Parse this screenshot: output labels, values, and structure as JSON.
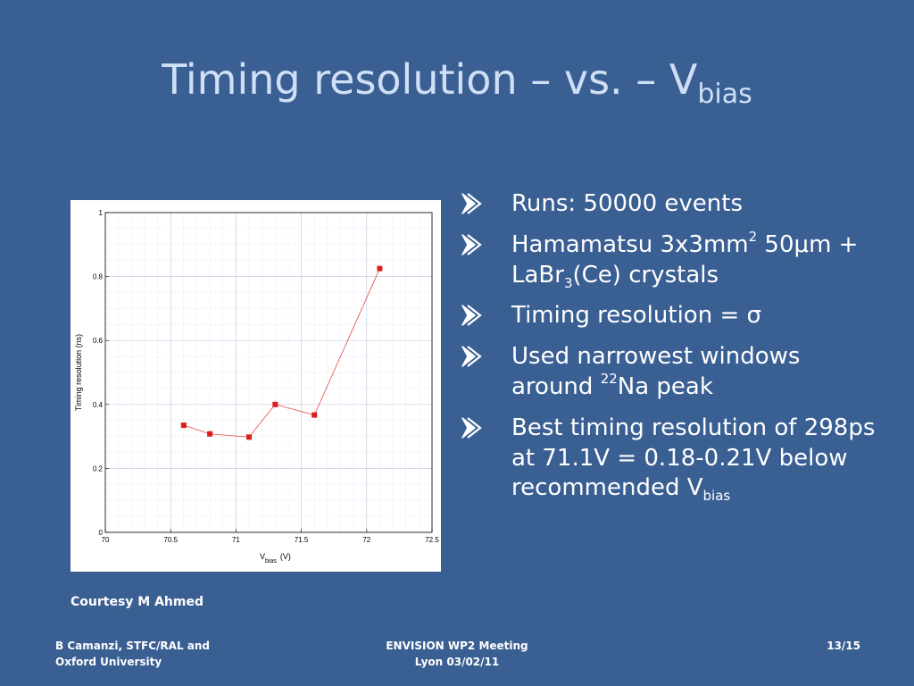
{
  "slide": {
    "title_main": "Timing resolution – vs. – V",
    "title_sub": "bias",
    "courtesy": "Courtesy M Ahmed",
    "footer": {
      "left_line1": "B Camanzi, STFC/RAL and",
      "left_line2": "Oxford University",
      "center_line1": "ENVISION WP2 Meeting",
      "center_line2": "Lyon 03/02/11",
      "page": "13/15"
    },
    "bullets": [
      {
        "text": "Runs: 50000 events"
      },
      {
        "pre": "Hamamatsu 3x3mm",
        "sup": "2",
        "mid": " 50μm + LaBr",
        "sub": "3",
        "post": "(Ce) crystals"
      },
      {
        "text": "Timing resolution = σ"
      },
      {
        "pre": "Used narrowest windows around ",
        "sup": "22",
        "post": "Na peak"
      },
      {
        "pre": "Best timing resolution of 298ps at 71.1V = 0.18-0.21V below recommended V",
        "sub": "bias"
      }
    ]
  },
  "colors": {
    "background": "#3a5f93",
    "title": "#cfe0f6",
    "series": "#e8473f",
    "marker": "#d91e1e",
    "grid": "#c5cde6"
  },
  "chart_data": {
    "type": "line",
    "x": [
      70.6,
      70.8,
      71.1,
      71.3,
      71.6,
      72.1
    ],
    "series": [
      {
        "values": [
          0.335,
          0.308,
          0.298,
          0.4,
          0.367,
          0.825
        ]
      }
    ],
    "xlim": [
      70,
      72.5
    ],
    "ylim": [
      0,
      1
    ],
    "x_ticks": [
      "70",
      "70.5",
      "71",
      "71.5",
      "72",
      "72.5"
    ],
    "y_ticks": [
      "0",
      "0.2",
      "0.4",
      "0.6",
      "0.8",
      "1"
    ],
    "xlabel_main": "V",
    "xlabel_sub": "bias",
    "xlabel_unit": "(V)",
    "ylabel": "Timing resolution (ns)",
    "grid": true
  }
}
